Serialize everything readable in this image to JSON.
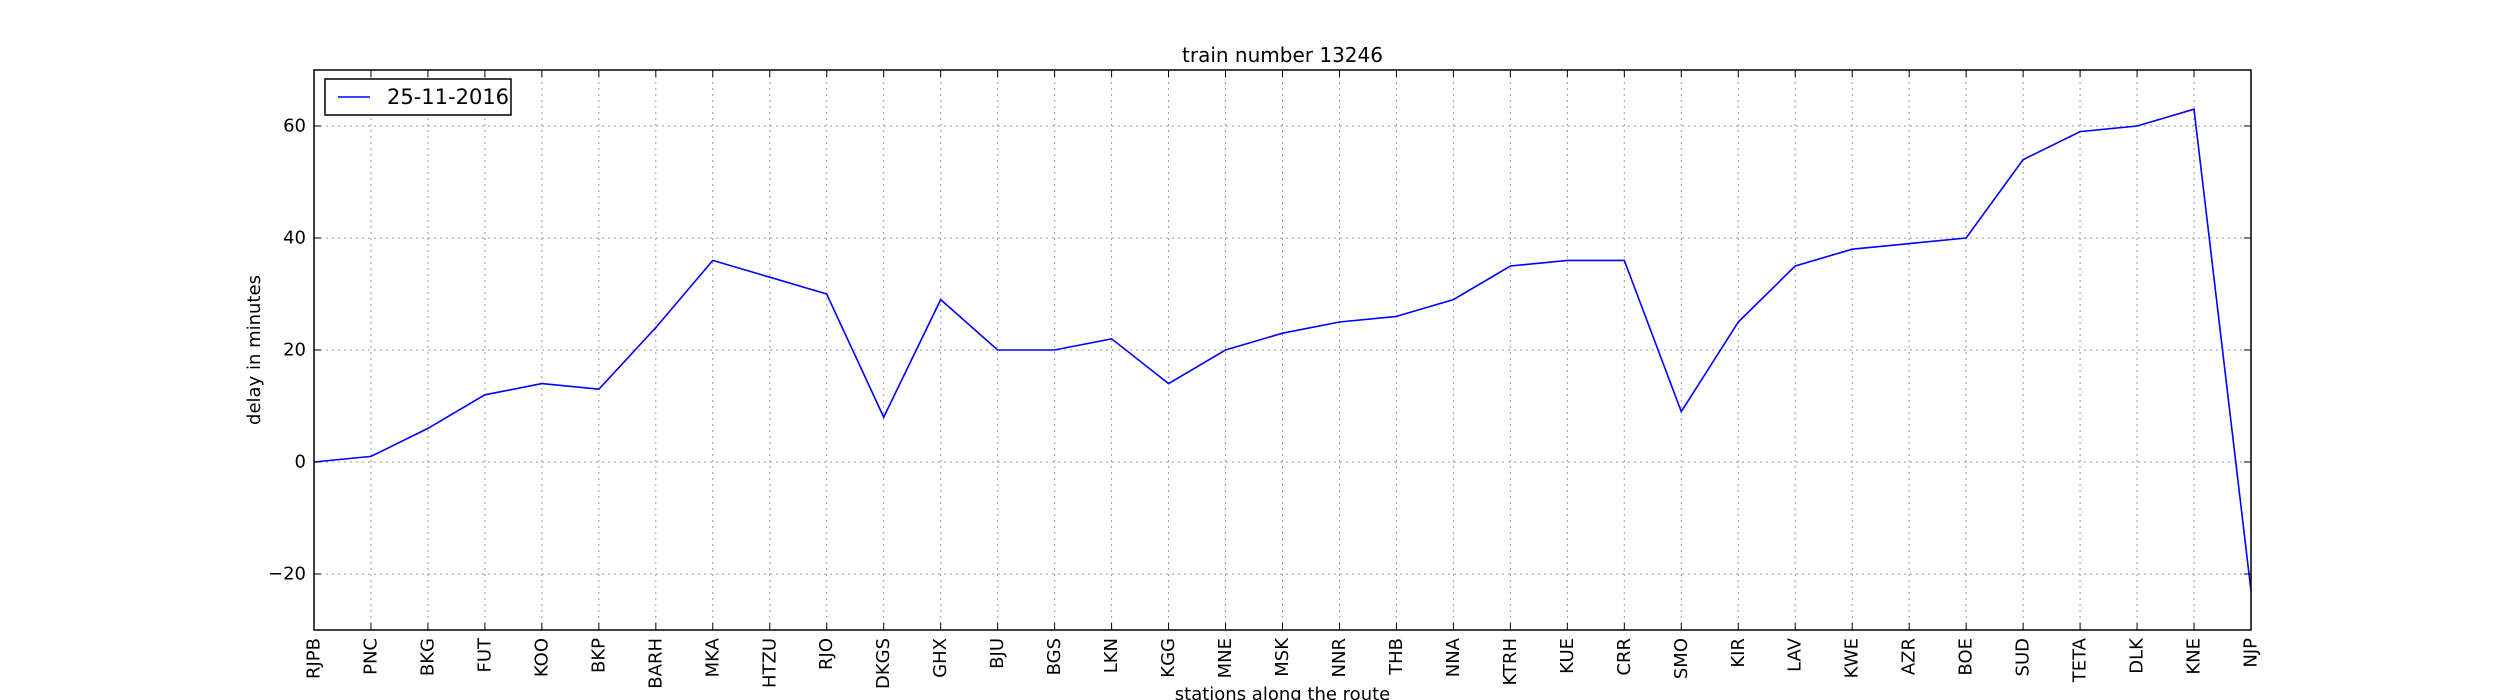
{
  "chart_data": {
    "type": "line",
    "title": "train number 13246",
    "xlabel": "stations along the route",
    "ylabel": "delay in minutes",
    "categories": [
      "RJPB",
      "PNC",
      "BKG",
      "FUT",
      "KOO",
      "BKP",
      "BARH",
      "MKA",
      "HTZU",
      "RJO",
      "DKGS",
      "GHX",
      "BJU",
      "BGS",
      "LKN",
      "KGG",
      "MNE",
      "MSK",
      "NNR",
      "THB",
      "NNA",
      "KTRH",
      "KUE",
      "CRR",
      "SMO",
      "KIR",
      "LAV",
      "KWE",
      "AZR",
      "BOE",
      "SUD",
      "TETA",
      "DLK",
      "KNE",
      "NJP"
    ],
    "series": [
      {
        "name": "25-11-2016",
        "color": "#0000ff",
        "values": [
          0,
          1,
          6,
          12,
          14,
          13,
          24,
          36,
          33,
          30,
          8,
          29,
          20,
          20,
          22,
          14,
          20,
          23,
          25,
          26,
          29,
          35,
          36,
          36,
          9,
          25,
          35,
          38,
          39,
          40,
          54,
          59,
          60,
          63,
          -23
        ]
      }
    ],
    "ylim": [
      -30,
      70
    ],
    "yticks": [
      -20,
      0,
      20,
      40,
      60
    ],
    "grid": true,
    "legend_position": "top-left"
  }
}
